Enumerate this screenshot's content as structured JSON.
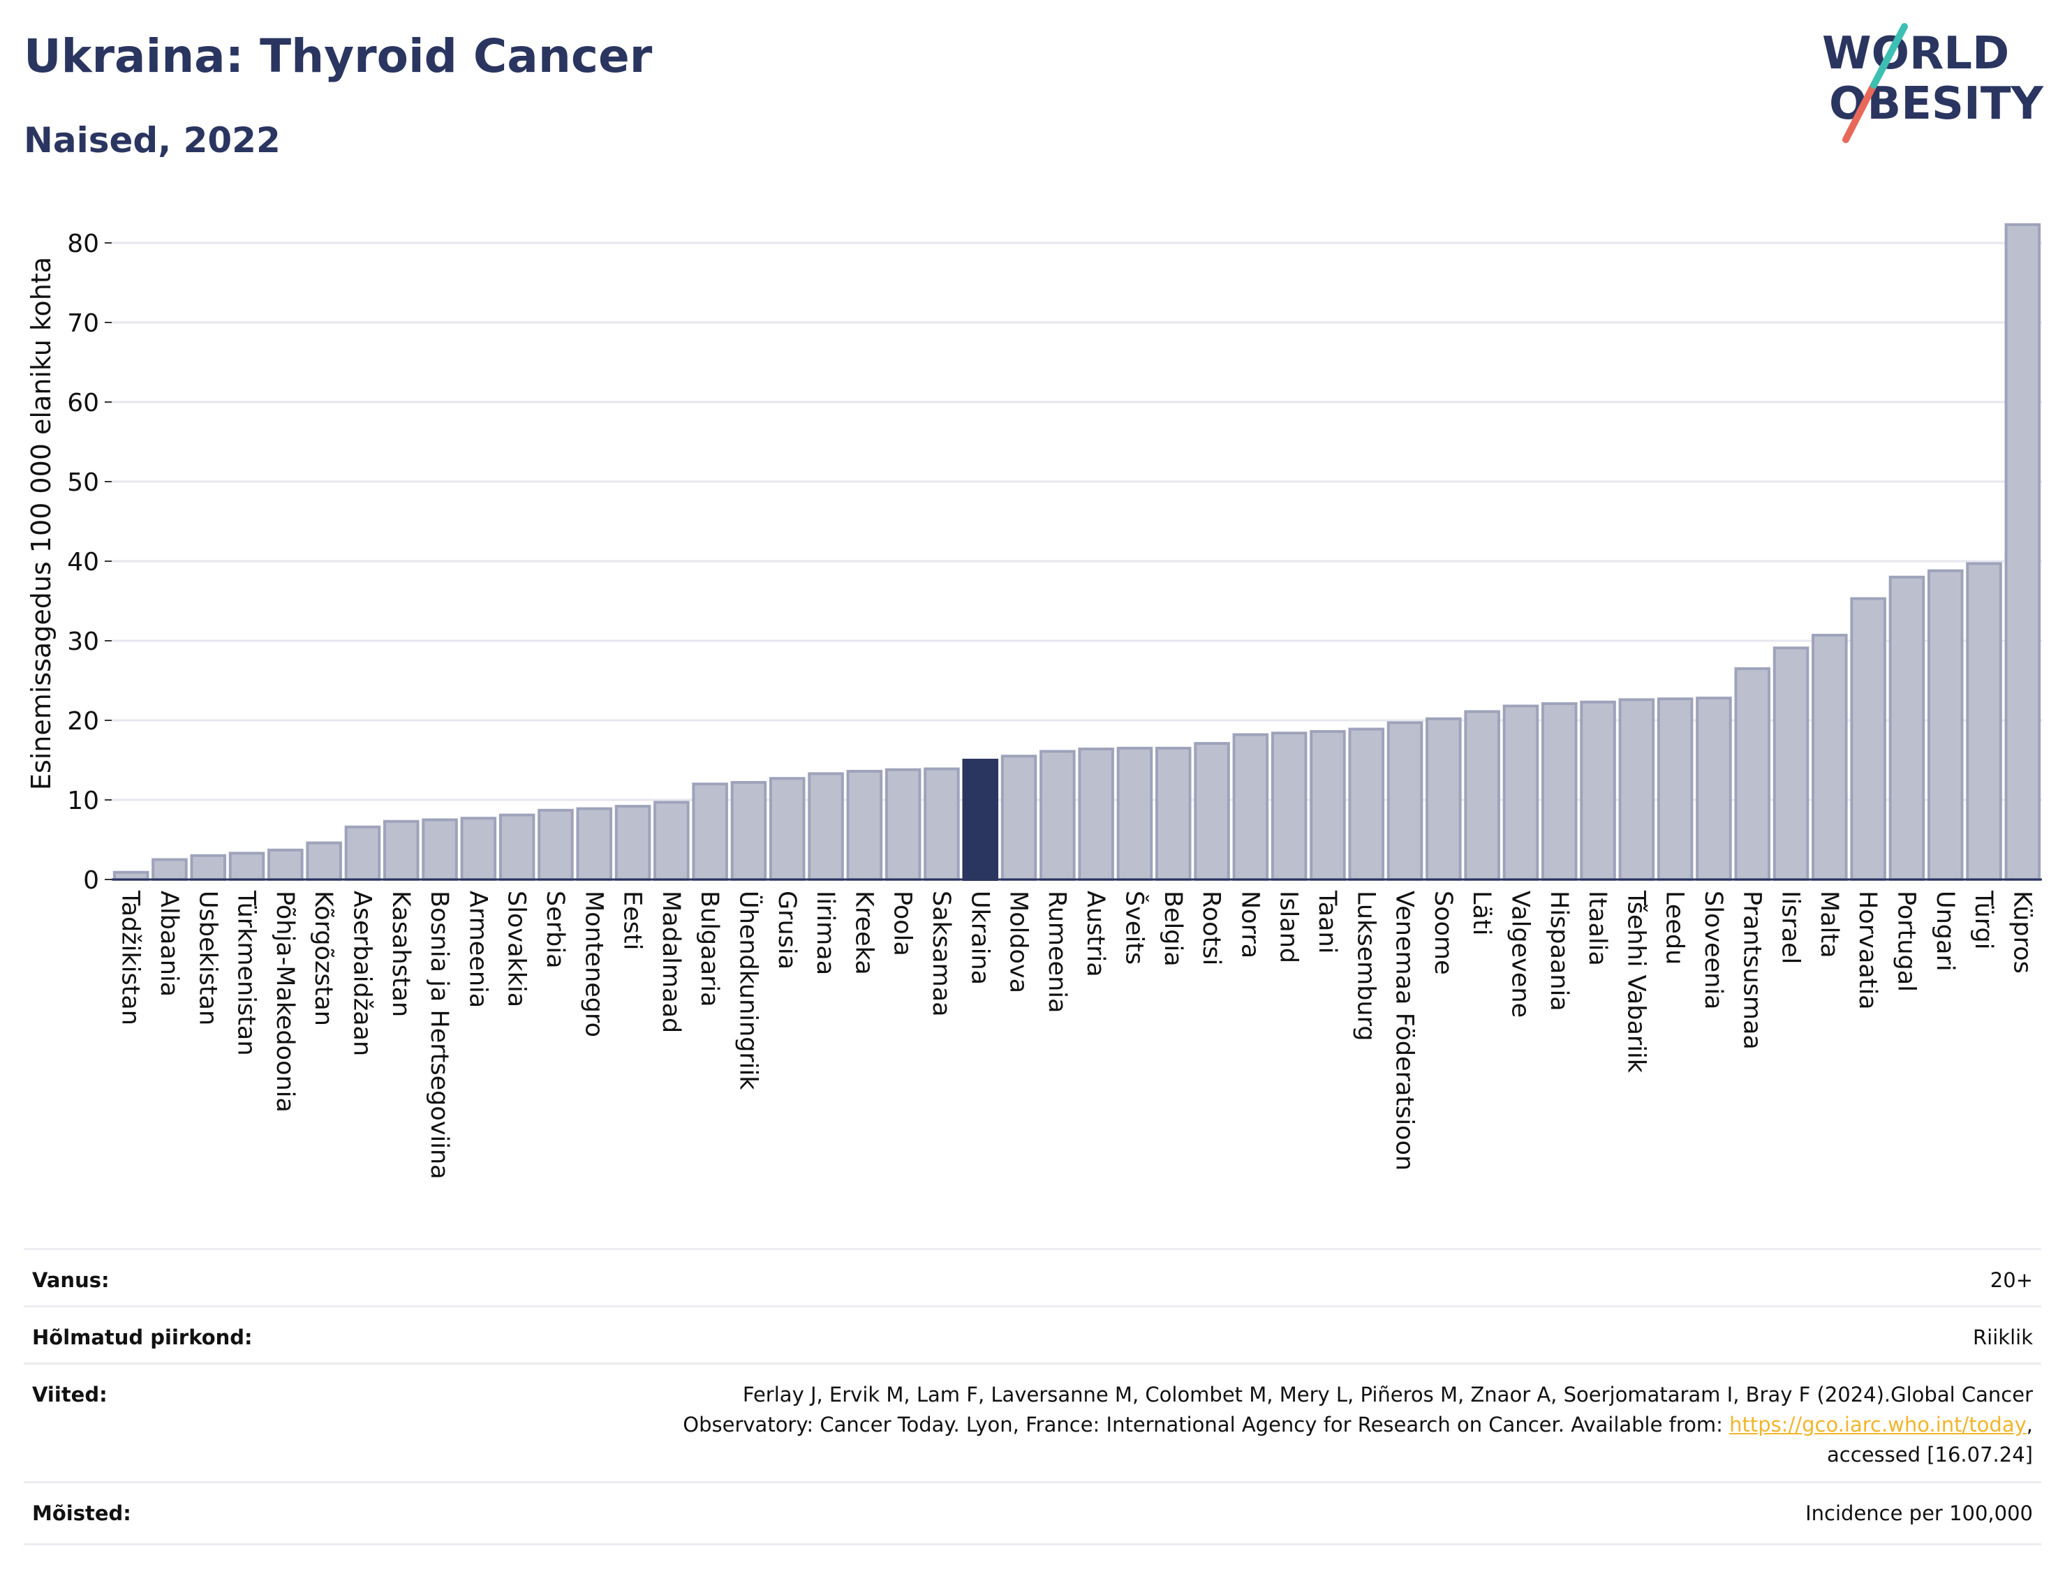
{
  "header": {
    "title": "Ukraina: Thyroid Cancer",
    "subtitle": "Naised, 2022",
    "logo_line1": "WORLD",
    "logo_line2": "OBESITY"
  },
  "chart_data": {
    "type": "bar",
    "title": "Ukraina: Thyroid Cancer",
    "subtitle": "Naised, 2022",
    "xlabel": "",
    "ylabel": "Esinemissagedus 100 000 elaniku kohta",
    "ylim": [
      0,
      85
    ],
    "yticks": [
      0,
      10,
      20,
      30,
      40,
      50,
      60,
      70,
      80
    ],
    "grid": true,
    "highlight": "Ukraina",
    "colors": {
      "bar": "#bcc0ce",
      "bar_edge": "#9ea3bb",
      "highlight": "#2a3560",
      "grid": "#e6e6ee"
    },
    "categories": [
      "Tadžikistan",
      "Albaania",
      "Usbekistan",
      "Türkmenistan",
      "Põhja-Makedoonia",
      "Kõrgõzstan",
      "Aserbaidžaan",
      "Kasahstan",
      "Bosnia ja Hertsegoviina",
      "Armeenia",
      "Slovakkia",
      "Serbia",
      "Montenegro",
      "Eesti",
      "Madalmaad",
      "Bulgaaria",
      "Ühendkuningriik",
      "Grusia",
      "Iirimaa",
      "Kreeka",
      "Poola",
      "Saksamaa",
      "Ukraina",
      "Moldova",
      "Rumeenia",
      "Austria",
      "Šveits",
      "Belgia",
      "Rootsi",
      "Norra",
      "Island",
      "Taani",
      "Luksemburg",
      "Venemaa Föderatsioon",
      "Soome",
      "Läti",
      "Valgevene",
      "Hispaania",
      "Itaalia",
      "Tšehhi Vabariik",
      "Leedu",
      "Sloveenia",
      "Prantsusmaa",
      "Iisrael",
      "Malta",
      "Horvaatia",
      "Portugal",
      "Ungari",
      "Türgi",
      "Küpros"
    ],
    "values": [
      0.9,
      2.5,
      3.0,
      3.3,
      3.7,
      4.6,
      6.6,
      7.3,
      7.5,
      7.7,
      8.1,
      8.7,
      8.9,
      9.2,
      9.7,
      12.0,
      12.2,
      12.7,
      13.3,
      13.6,
      13.8,
      13.9,
      15.0,
      15.5,
      16.1,
      16.4,
      16.5,
      16.5,
      17.1,
      18.2,
      18.4,
      18.6,
      18.9,
      19.7,
      20.2,
      21.1,
      21.8,
      22.1,
      22.3,
      22.6,
      22.7,
      22.8,
      26.5,
      29.1,
      30.7,
      35.3,
      38.0,
      38.8,
      39.7,
      82.3
    ]
  },
  "info": {
    "age_label": "Vanus:",
    "age_value": "20+",
    "region_label": "Hõlmatud piirkond:",
    "region_value": "Riiklik",
    "refs_label": "Viited:",
    "refs_line1": "Ferlay J, Ervik M, Lam F, Laversanne M, Colombet M, Mery L, Piñeros M, Znaor A, Soerjomataram I, Bray F (2024).Global Cancer",
    "refs_line2": "Observatory: Cancer Today. Lyon, France: International Agency for Research on Cancer. Available from: ",
    "refs_link": "https://gco.iarc.who.int/today",
    "refs_line2_tail": ",",
    "refs_line3": "accessed [16.07.24]",
    "defs_label": "Mõisted:",
    "defs_value": "Incidence per 100,000"
  }
}
